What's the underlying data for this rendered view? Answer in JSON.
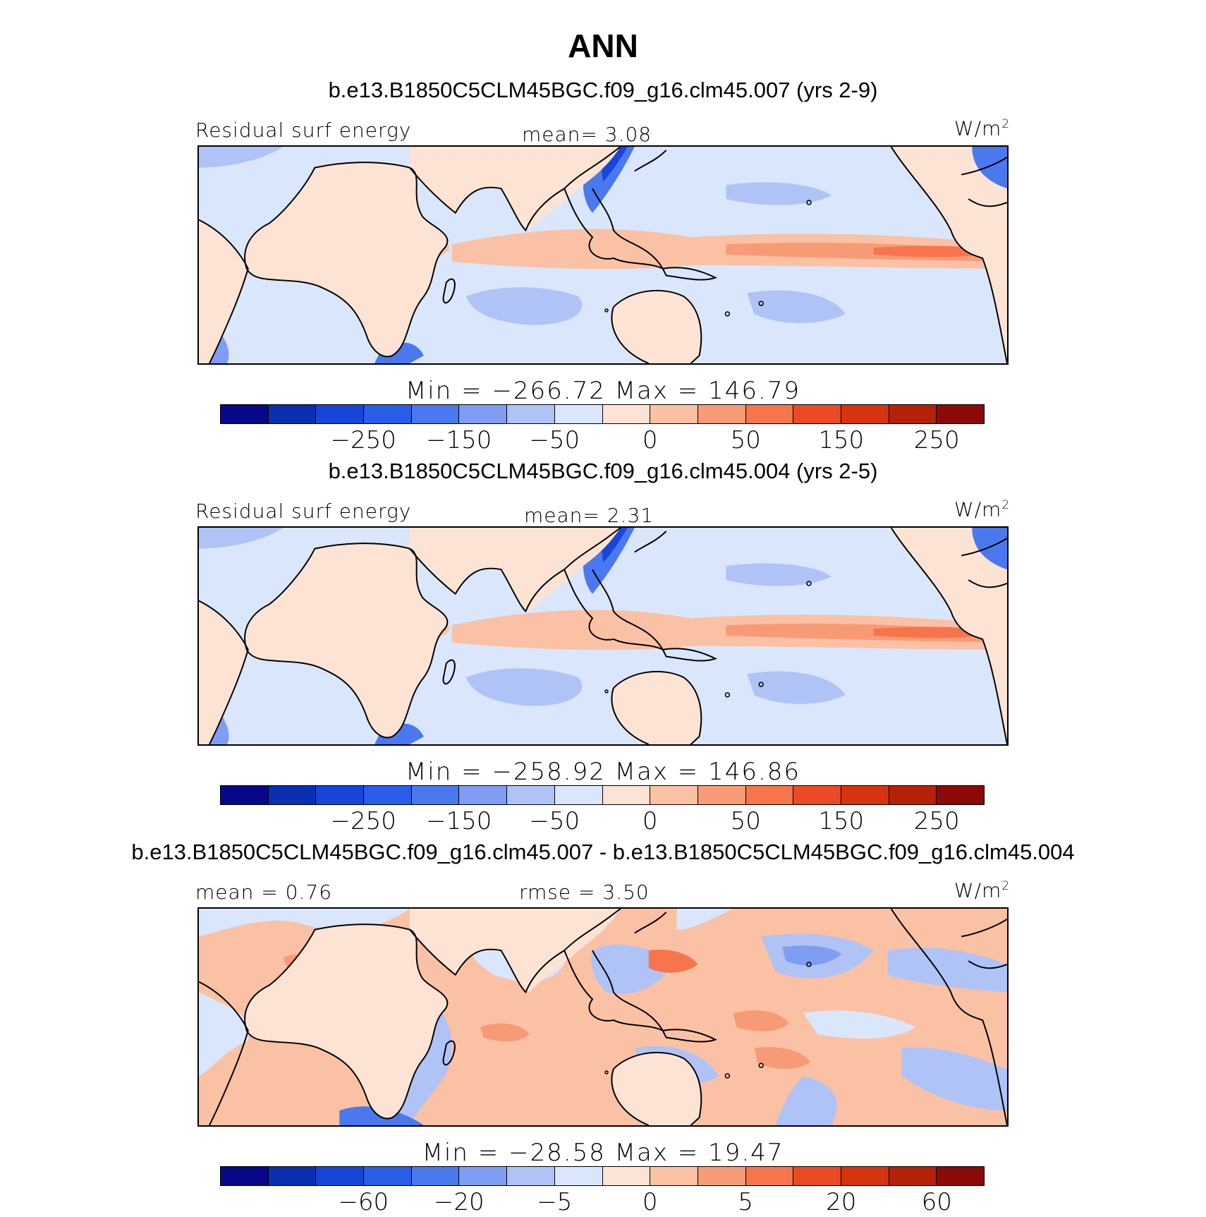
{
  "figure": {
    "title": "ANN",
    "units_base": "W/m",
    "units_exp": "2"
  },
  "colors": {
    "diverging": [
      "#08088a",
      "#0a2fb0",
      "#1746d8",
      "#2a5de8",
      "#4a78ee",
      "#7f9ef3",
      "#afc3f7",
      "#d9e6fb",
      "#fde3d4",
      "#fbc1a4",
      "#f79b77",
      "#f6754d",
      "#ec4a24",
      "#d8330f",
      "#b52208",
      "#8b0a08"
    ],
    "land": "#fde3d4",
    "coast": "#000000"
  },
  "panels": [
    {
      "title": "b.e13.B1850C5CLM45BGC.f09_g16.clm45.007 (yrs 2-9)",
      "left_label": "Residual surf energy",
      "center_label": "mean=   3.08",
      "minmax": "Min = −266.72 Max = 146.79",
      "ticks": [
        "−250",
        "−150",
        "−50",
        "0",
        "50",
        "150",
        "250"
      ]
    },
    {
      "title": "b.e13.B1850C5CLM45BGC.f09_g16.clm45.004 (yrs 2-5)",
      "left_label": "Residual surf energy",
      "center_label": "mean=   2.31",
      "minmax": "Min = −258.92 Max = 146.86",
      "ticks": [
        "−250",
        "−150",
        "−50",
        "0",
        "50",
        "150",
        "250"
      ]
    },
    {
      "title": "b.e13.B1850C5CLM45BGC.f09_g16.clm45.007 - b.e13.B1850C5CLM45BGC.f09_g16.clm45.004",
      "left_label": "mean =   0.76",
      "center_label": "rmse =   3.50",
      "minmax": "Min = −28.58 Max =  19.47",
      "ticks": [
        "−60",
        "−20",
        "−5",
        "0",
        "5",
        "20",
        "60"
      ]
    }
  ]
}
